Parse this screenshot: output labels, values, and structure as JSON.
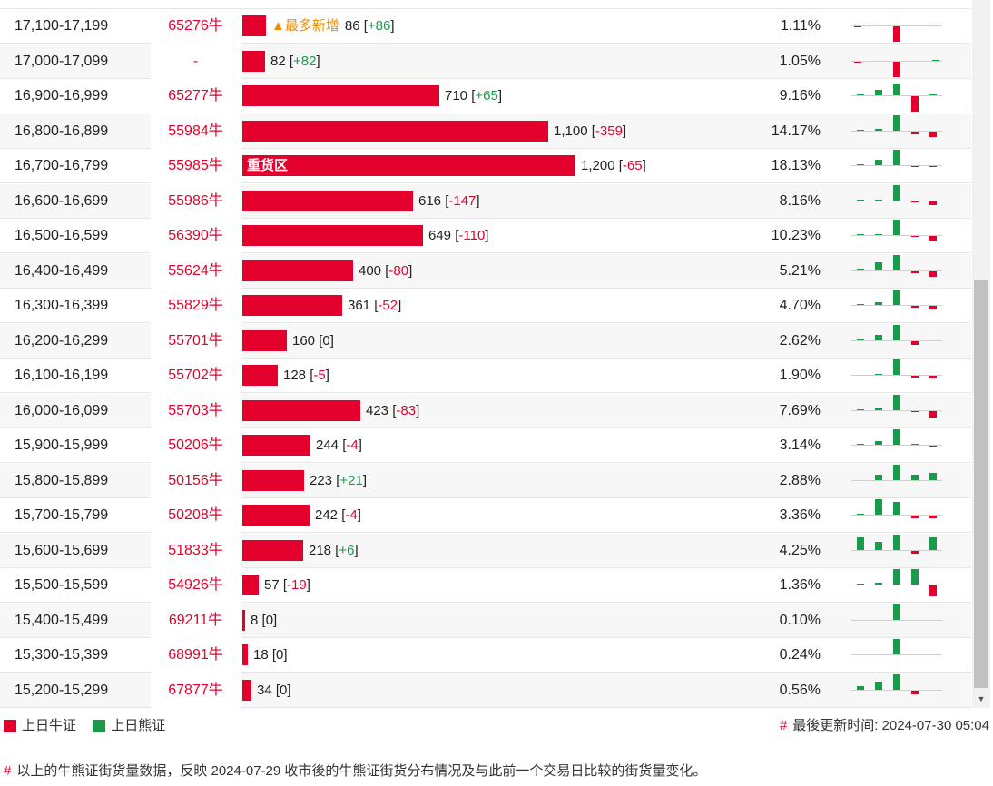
{
  "rows": [
    {
      "range": "17,100-17,199",
      "code": "65276牛",
      "label": "",
      "newest": "▲最多新增",
      "qty": "86",
      "change": "+86",
      "pct": "1.11%",
      "frac": 0.072,
      "spark": [
        -1,
        1,
        0,
        -17,
        0,
        0,
        1
      ]
    },
    {
      "range": "17,000-17,099",
      "code": "-",
      "label": "",
      "newest": "",
      "qty": "82",
      "change": "+82",
      "pct": "1.05%",
      "frac": 0.068,
      "spark": [
        -1,
        0,
        0,
        -17,
        0,
        0,
        1
      ]
    },
    {
      "range": "16,900-16,999",
      "code": "65277牛",
      "label": "",
      "newest": "",
      "qty": "710",
      "change": "+65",
      "pct": "9.16%",
      "frac": 0.592,
      "spark": [
        1,
        6,
        13,
        -17,
        1
      ]
    },
    {
      "range": "16,800-16,899",
      "code": "55984牛",
      "label": "",
      "newest": "",
      "qty": "1,100",
      "change": "-359",
      "pct": "14.17%",
      "frac": 0.917,
      "spark": [
        1,
        2,
        17,
        -3,
        -6
      ]
    },
    {
      "range": "16,700-16,799",
      "code": "55985牛",
      "label": "重货区",
      "newest": "",
      "qty": "1,200",
      "change": "-65",
      "pct": "18.13%",
      "frac": 1.0,
      "spark": [
        1,
        6,
        17,
        -1,
        -1
      ]
    },
    {
      "range": "16,600-16,699",
      "code": "55986牛",
      "label": "",
      "newest": "",
      "qty": "616",
      "change": "-147",
      "pct": "8.16%",
      "frac": 0.513,
      "spark": [
        1,
        1,
        17,
        -1,
        -4
      ]
    },
    {
      "range": "16,500-16,599",
      "code": "56390牛",
      "label": "",
      "newest": "",
      "qty": "649",
      "change": "-110",
      "pct": "10.23%",
      "frac": 0.541,
      "spark": [
        1,
        1,
        17,
        -1,
        -6
      ]
    },
    {
      "range": "16,400-16,499",
      "code": "55624牛",
      "label": "",
      "newest": "",
      "qty": "400",
      "change": "-80",
      "pct": "5.21%",
      "frac": 0.333,
      "spark": [
        2,
        9,
        17,
        -2,
        -6
      ]
    },
    {
      "range": "16,300-16,399",
      "code": "55829牛",
      "label": "",
      "newest": "",
      "qty": "361",
      "change": "-52",
      "pct": "4.70%",
      "frac": 0.301,
      "spark": [
        1,
        3,
        17,
        -2,
        -4
      ]
    },
    {
      "range": "16,200-16,299",
      "code": "55701牛",
      "label": "",
      "newest": "",
      "qty": "160",
      "change": "0",
      "pct": "2.62%",
      "frac": 0.133,
      "spark": [
        2,
        6,
        17,
        -4,
        0
      ]
    },
    {
      "range": "16,100-16,199",
      "code": "55702牛",
      "label": "",
      "newest": "",
      "qty": "128",
      "change": "-5",
      "pct": "1.90%",
      "frac": 0.107,
      "spark": [
        0,
        1,
        17,
        -2,
        -3
      ]
    },
    {
      "range": "16,000-16,099",
      "code": "55703牛",
      "label": "",
      "newest": "",
      "qty": "423",
      "change": "-83",
      "pct": "7.69%",
      "frac": 0.353,
      "spark": [
        1,
        3,
        17,
        -1,
        -7
      ]
    },
    {
      "range": "15,900-15,999",
      "code": "50206牛",
      "label": "",
      "newest": "",
      "qty": "244",
      "change": "-4",
      "pct": "3.14%",
      "frac": 0.203,
      "spark": [
        1,
        4,
        17,
        1,
        -1
      ]
    },
    {
      "range": "15,800-15,899",
      "code": "50156牛",
      "label": "",
      "newest": "",
      "qty": "223",
      "change": "+21",
      "pct": "2.88%",
      "frac": 0.186,
      "spark": [
        0,
        6,
        17,
        6,
        8
      ]
    },
    {
      "range": "15,700-15,799",
      "code": "50208牛",
      "label": "",
      "newest": "",
      "qty": "242",
      "change": "-4",
      "pct": "3.36%",
      "frac": 0.202,
      "spark": [
        1,
        17,
        14,
        -3,
        -3
      ]
    },
    {
      "range": "15,600-15,699",
      "code": "51833牛",
      "label": "",
      "newest": "",
      "qty": "218",
      "change": "+6",
      "pct": "4.25%",
      "frac": 0.182,
      "spark": [
        14,
        9,
        17,
        -3,
        14
      ]
    },
    {
      "range": "15,500-15,599",
      "code": "54926牛",
      "label": "",
      "newest": "",
      "qty": "57",
      "change": "-19",
      "pct": "1.36%",
      "frac": 0.048,
      "spark": [
        1,
        2,
        17,
        17,
        -12
      ]
    },
    {
      "range": "15,400-15,499",
      "code": "69211牛",
      "label": "",
      "newest": "",
      "qty": "8",
      "change": "0",
      "pct": "0.10%",
      "frac": 0.0067,
      "spark": [
        0,
        0,
        17,
        0,
        0
      ]
    },
    {
      "range": "15,300-15,399",
      "code": "68991牛",
      "label": "",
      "newest": "",
      "qty": "18",
      "change": "0",
      "pct": "0.24%",
      "frac": 0.015,
      "spark": [
        0,
        0,
        17,
        0,
        0
      ]
    },
    {
      "range": "15,200-15,299",
      "code": "67877牛",
      "label": "",
      "newest": "",
      "qty": "34",
      "change": "0",
      "pct": "0.56%",
      "frac": 0.028,
      "spark": [
        4,
        9,
        17,
        -4,
        0
      ]
    }
  ],
  "legend": {
    "bull": "上日牛证",
    "bear": "上日熊证"
  },
  "update": {
    "hash": "#",
    "text": "最後更新时间: 2024-07-30 05:04"
  },
  "footnote": {
    "hash": "#",
    "text": "以上的牛熊证街货量数据，反映 2024-07-29 收市後的牛熊证街货分布情况及与此前一个交易日比较的街货量变化。"
  },
  "colors": {
    "bull": "#e3002c",
    "bear": "#1a9a4a",
    "newest": "#f08a00"
  },
  "icons": {
    "scroll_down": "triangle-down-icon"
  }
}
